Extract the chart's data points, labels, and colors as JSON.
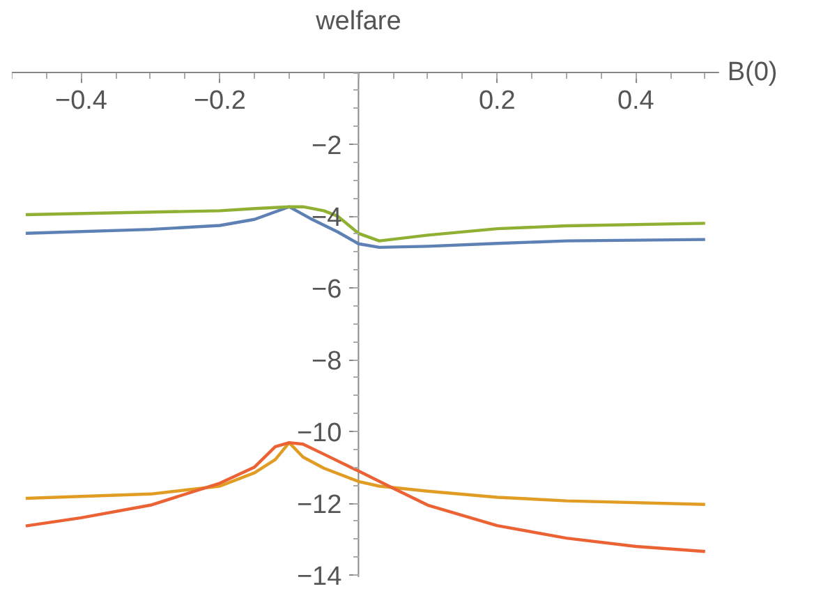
{
  "chart_data": {
    "type": "line",
    "title": "welfare",
    "xlabel": "B(0)",
    "xlim": [
      -0.5,
      0.52
    ],
    "ylim": [
      -14.05,
      0
    ],
    "xticks": [
      {
        "value": -0.4,
        "label": "−0.4"
      },
      {
        "value": -0.2,
        "label": "−0.2"
      },
      {
        "value": 0.2,
        "label": "0.2"
      },
      {
        "value": 0.4,
        "label": "0.4"
      }
    ],
    "yticks": [
      {
        "value": -2,
        "label": "−2"
      },
      {
        "value": -4,
        "label": "−4"
      },
      {
        "value": -6,
        "label": "−6"
      },
      {
        "value": -8,
        "label": "−8"
      },
      {
        "value": -10,
        "label": "−10"
      },
      {
        "value": -12,
        "label": "−12"
      },
      {
        "value": -14,
        "label": "−14"
      }
    ],
    "grid": false,
    "marker": "none",
    "line_style": "solid",
    "series": [
      {
        "color": "#5e81b5",
        "x": [
          -0.48,
          -0.3,
          -0.2,
          -0.15,
          -0.1,
          -0.07,
          -0.03,
          0,
          0.03,
          0.1,
          0.2,
          0.3,
          0.5
        ],
        "values": [
          -4.48,
          -4.37,
          -4.26,
          -4.09,
          -3.74,
          -4.06,
          -4.44,
          -4.77,
          -4.87,
          -4.84,
          -4.76,
          -4.69,
          -4.65
        ]
      },
      {
        "color": "#e19c24",
        "x": [
          -0.48,
          -0.3,
          -0.2,
          -0.15,
          -0.12,
          -0.1,
          -0.08,
          -0.05,
          0,
          0.03,
          0.1,
          0.2,
          0.3,
          0.5
        ],
        "values": [
          -11.86,
          -11.74,
          -11.52,
          -11.15,
          -10.78,
          -10.31,
          -10.71,
          -11.02,
          -11.39,
          -11.52,
          -11.66,
          -11.83,
          -11.93,
          -12.03
        ]
      },
      {
        "color": "#8fb032",
        "x": [
          -0.48,
          -0.2,
          -0.15,
          -0.1,
          -0.08,
          -0.05,
          -0.03,
          0,
          0.03,
          0.1,
          0.2,
          0.3,
          0.5
        ],
        "values": [
          -3.96,
          -3.85,
          -3.79,
          -3.74,
          -3.74,
          -3.85,
          -4.0,
          -4.48,
          -4.69,
          -4.53,
          -4.35,
          -4.27,
          -4.2
        ]
      },
      {
        "color": "#eb6235",
        "x": [
          -0.48,
          -0.4,
          -0.3,
          -0.2,
          -0.15,
          -0.12,
          -0.1,
          -0.08,
          -0.05,
          0,
          0.05,
          0.1,
          0.2,
          0.3,
          0.4,
          0.5
        ],
        "values": [
          -12.63,
          -12.4,
          -12.05,
          -11.44,
          -10.99,
          -10.42,
          -10.31,
          -10.35,
          -10.63,
          -11.1,
          -11.58,
          -12.05,
          -12.62,
          -12.97,
          -13.2,
          -13.34
        ]
      }
    ]
  }
}
